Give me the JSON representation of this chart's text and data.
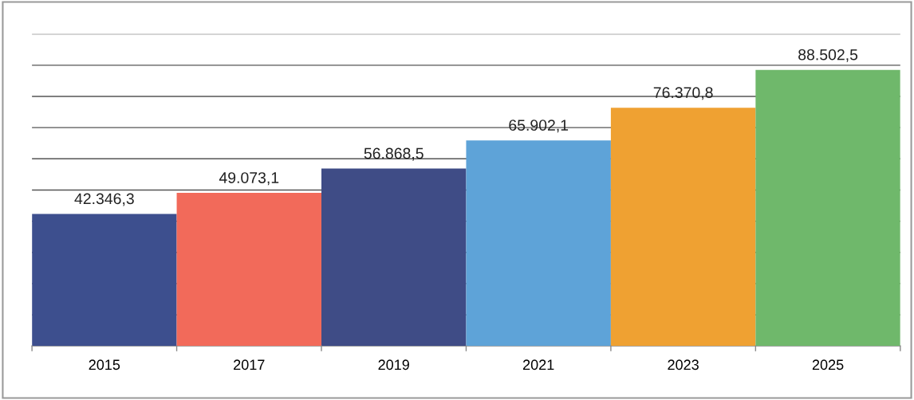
{
  "chart_data": {
    "type": "bar",
    "categories": [
      "2015",
      "2017",
      "2019",
      "2021",
      "2023",
      "2025"
    ],
    "values": [
      42346.3,
      49073.1,
      56868.5,
      65902.1,
      76370.8,
      88502.5
    ],
    "value_labels": [
      "42.346,3",
      "49.073,1",
      "56.868,5",
      "65.902,1",
      "76.370,8",
      "88.502,5"
    ],
    "colors": [
      "#3d4f8e",
      "#f26a5a",
      "#3f4c86",
      "#5ea3d8",
      "#efa132",
      "#6fb86b"
    ],
    "ylim": [
      0,
      100000
    ],
    "yticks": [
      {
        "value": 10000,
        "label": null
      },
      {
        "value": 20000,
        "label": null
      },
      {
        "value": 30000,
        "label": null
      },
      {
        "value": 40000,
        "label": null
      },
      {
        "value": 50000,
        "label": null
      },
      {
        "value": 60000,
        "label": null
      },
      {
        "value": 70000,
        "label": null
      },
      {
        "value": 80000,
        "label": null
      },
      {
        "value": 90000,
        "label": null
      },
      {
        "value": 100000,
        "label": null
      }
    ],
    "tick_labels": "x",
    "grid": "y",
    "legend": false
  }
}
